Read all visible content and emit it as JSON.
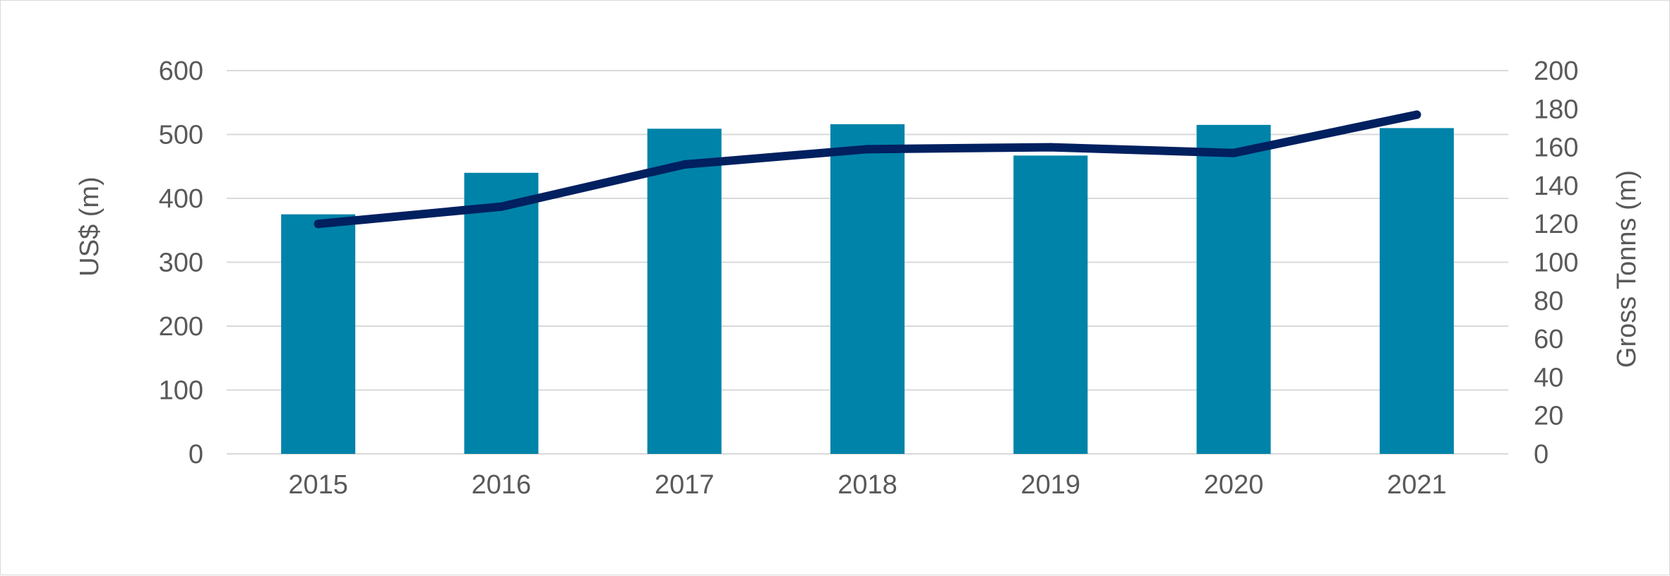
{
  "chart_data": {
    "type": "bar",
    "categories": [
      "2015",
      "2016",
      "2017",
      "2018",
      "2019",
      "2020",
      "2021"
    ],
    "series": [
      {
        "type": "bar",
        "axis": "left",
        "color": "#0083a9",
        "values": [
          375,
          440,
          509,
          516,
          467,
          515,
          510
        ]
      },
      {
        "type": "line",
        "axis": "right",
        "color": "#002060",
        "values": [
          120,
          129,
          151,
          159,
          160,
          157,
          177
        ]
      }
    ],
    "ylabel": "US$  (m)",
    "y2label": "Gross Tonns (m)",
    "ylim": [
      0,
      600
    ],
    "yticks": [
      0,
      100,
      200,
      300,
      400,
      500,
      600
    ],
    "y2lim": [
      0,
      200
    ],
    "y2ticks": [
      0,
      20,
      40,
      60,
      80,
      100,
      120,
      140,
      160,
      180,
      200
    ],
    "grid": true,
    "gridColor": "#d9d9d9",
    "textColor": "#595959"
  }
}
